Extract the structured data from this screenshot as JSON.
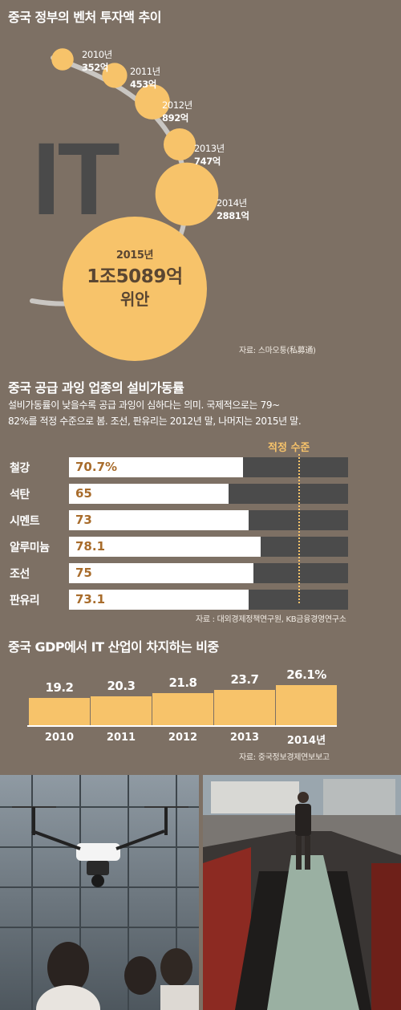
{
  "colors": {
    "background": "#7d7064",
    "bubble": "#f7c36a",
    "bar_track": "#4b4b4b",
    "bar_fill": "#ffffff",
    "bar_value_text": "#a86c2c",
    "gdp_bar": "#f7c36a",
    "threshold": "#f7c36a"
  },
  "section1": {
    "title": "중국 정부의 벤처 투자액 추이",
    "big_letters": "IT",
    "source": "자료: 스마오퉁(私募通)"
  },
  "section2": {
    "title": "중국 공급 과잉 업종의 설비가동률",
    "desc_line1": "설비가동률이 낮을수록 공급 과잉이 심하다는 의미. 국제적으로는 79~",
    "desc_line2": "82%를 적정 수준으로 봄. 조선, 판유리는 2012년 말, 나머지는 2015년 말.",
    "threshold_label": "적정 수준",
    "source": "자료 : 대외경제정책연구원, KB금융경영연구소"
  },
  "section3": {
    "title": "중국 GDP에서 IT 산업이 차지하는 비중",
    "source": "자료: 중국정보경제연보보고"
  },
  "photos": {
    "left_icon": "drone-photo",
    "right_icon": "coal-train-photo"
  },
  "chart_data": [
    {
      "type": "scatter",
      "subtype": "bubble",
      "title": "중국 정부의 벤처 투자액 추이",
      "points": [
        {
          "year": "2010년",
          "label": "352억",
          "value": 352
        },
        {
          "year": "2011년",
          "label": "453억",
          "value": 453
        },
        {
          "year": "2012년",
          "label": "892억",
          "value": 892
        },
        {
          "year": "2013년",
          "label": "747억",
          "value": 747
        },
        {
          "year": "2014년",
          "label": "2881억",
          "value": 2881
        },
        {
          "year": "2015년",
          "label": "1조5089억",
          "label2": "위안",
          "value": 15089
        }
      ]
    },
    {
      "type": "bar",
      "orientation": "horizontal",
      "title": "중국 공급 과잉 업종의 설비가동률",
      "categories": [
        "철강",
        "석탄",
        "시멘트",
        "알루미늄",
        "조선",
        "판유리"
      ],
      "values": [
        70.7,
        65,
        73,
        78.1,
        75,
        73.1
      ],
      "value_labels": [
        "70.7%",
        "65",
        "73",
        "78.1",
        "75",
        "73.1"
      ],
      "xlim": [
        0,
        100
      ],
      "threshold": {
        "label": "적정 수준",
        "value": 82
      }
    },
    {
      "type": "bar",
      "title": "중국 GDP에서 IT 산업이 차지하는 비중",
      "categories": [
        "2010",
        "2011",
        "2012",
        "2013",
        "2014년"
      ],
      "values": [
        19.2,
        20.3,
        21.8,
        23.7,
        26.1
      ],
      "value_labels": [
        "19.2",
        "20.3",
        "21.8",
        "23.7",
        "26.1%"
      ]
    }
  ]
}
